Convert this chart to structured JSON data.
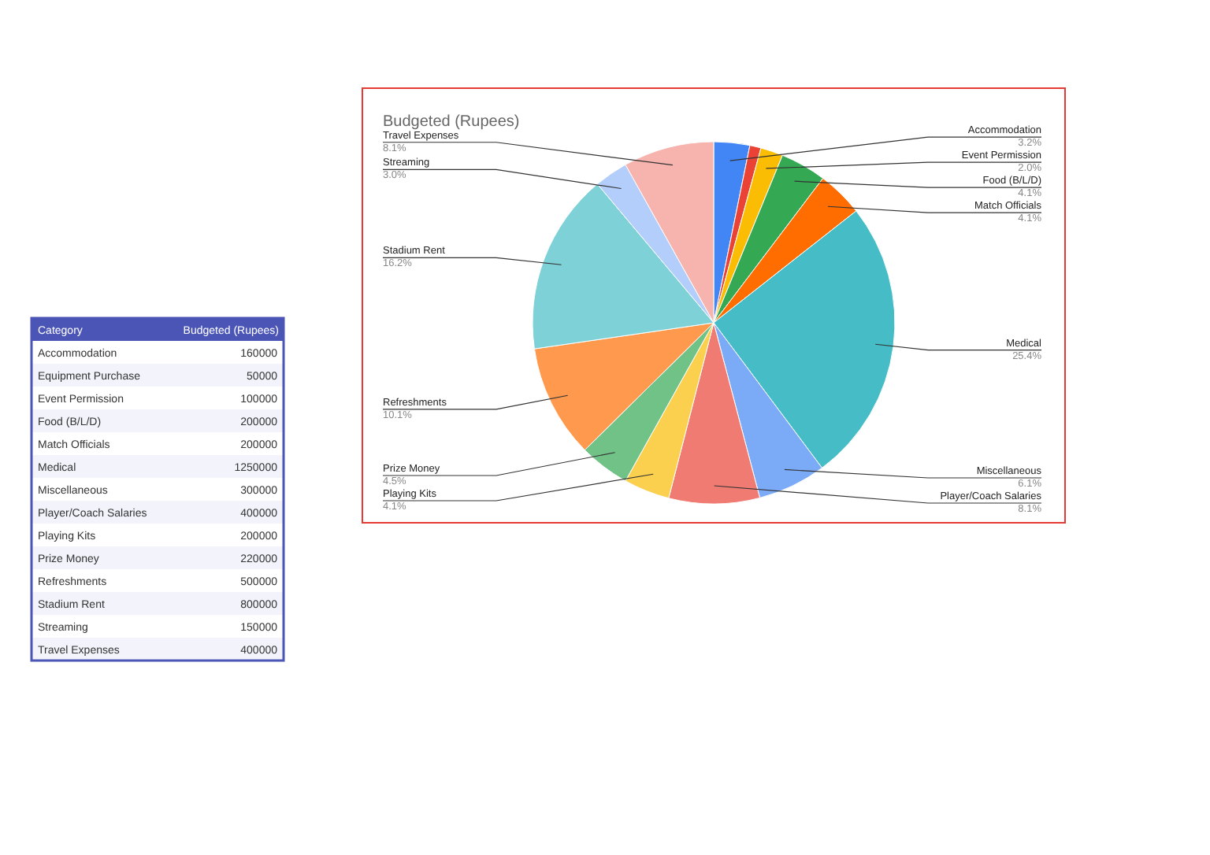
{
  "chart_data": [
    {
      "type": "pie",
      "title": "Budgeted (Rupees)",
      "categories": [
        "Accommodation",
        null,
        "Event Permission",
        "Food (B/L/D)",
        "Match Officials",
        "Medical",
        "Miscellaneous",
        "Player/Coach Salaries",
        "Playing Kits",
        "Prize Money",
        "Refreshments",
        "Stadium Rent",
        "Streaming",
        "Travel Expenses"
      ],
      "values": [
        3.2,
        1.0,
        2.0,
        4.1,
        4.1,
        25.4,
        6.1,
        8.1,
        4.1,
        4.5,
        10.1,
        16.2,
        3.0,
        8.1
      ],
      "value_labels": [
        "3.2%",
        null,
        "2.0%",
        "4.1%",
        "4.1%",
        "25.4%",
        "6.1%",
        "8.1%",
        "4.1%",
        "4.5%",
        "10.1%",
        "16.2%",
        "3.0%",
        "8.1%"
      ],
      "colors": [
        "#4285f4",
        "#ea4335",
        "#fbbc04",
        "#34a853",
        "#ff6d01",
        "#46bdc6",
        "#7baaf7",
        "#f07b72",
        "#fcd04f",
        "#71c287",
        "#ff994d",
        "#7ed1d7",
        "#b3cefb",
        "#f7b4ae"
      ]
    },
    {
      "type": "other",
      "categories": [
        "Accommodation",
        "Equipment Purchase",
        "Event Permission",
        "Food (B/L/D)",
        "Match Officials",
        "Medical",
        "Miscellaneous",
        "Player/Coach Salaries",
        "Playing Kits",
        "Prize Money",
        "Refreshments",
        "Stadium Rent",
        "Streaming",
        "Travel Expenses"
      ],
      "values": [
        160000,
        50000,
        100000,
        200000,
        200000,
        1250000,
        300000,
        400000,
        200000,
        220000,
        500000,
        800000,
        150000,
        400000
      ],
      "data_labels": true,
      "annotations": [
        "Category",
        "Budgeted (Rupees)"
      ]
    }
  ]
}
